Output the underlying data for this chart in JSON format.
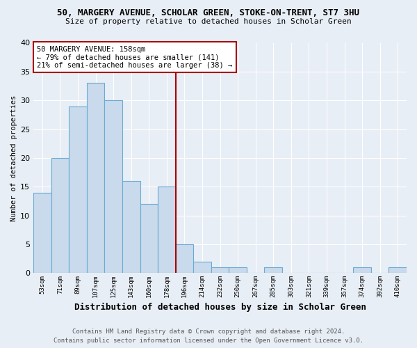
{
  "title": "50, MARGERY AVENUE, SCHOLAR GREEN, STOKE-ON-TRENT, ST7 3HU",
  "subtitle": "Size of property relative to detached houses in Scholar Green",
  "xlabel": "Distribution of detached houses by size in Scholar Green",
  "ylabel": "Number of detached properties",
  "footer_line1": "Contains HM Land Registry data © Crown copyright and database right 2024.",
  "footer_line2": "Contains public sector information licensed under the Open Government Licence v3.0.",
  "annotation_line1": "50 MARGERY AVENUE: 158sqm",
  "annotation_line2": "← 79% of detached houses are smaller (141)",
  "annotation_line3": "21% of semi-detached houses are larger (38) →",
  "bar_labels": [
    "53sqm",
    "71sqm",
    "89sqm",
    "107sqm",
    "125sqm",
    "143sqm",
    "160sqm",
    "178sqm",
    "196sqm",
    "214sqm",
    "232sqm",
    "250sqm",
    "267sqm",
    "285sqm",
    "303sqm",
    "321sqm",
    "339sqm",
    "357sqm",
    "374sqm",
    "392sqm",
    "410sqm"
  ],
  "bar_values": [
    14,
    20,
    29,
    33,
    30,
    16,
    12,
    15,
    5,
    2,
    1,
    1,
    0,
    1,
    0,
    0,
    0,
    0,
    1,
    0,
    1
  ],
  "bar_color": "#c8daec",
  "bar_edge_color": "#6aaad4",
  "marker_color": "#aa0000",
  "marker_after_index": 7,
  "ylim": [
    0,
    40
  ],
  "yticks": [
    0,
    5,
    10,
    15,
    20,
    25,
    30,
    35,
    40
  ],
  "background_color": "#e8eef5",
  "grid_color": "#ffffff",
  "title_fontsize": 9,
  "subtitle_fontsize": 8,
  "ylabel_fontsize": 7.5,
  "xlabel_fontsize": 9,
  "tick_fontsize": 6.5,
  "annotation_fontsize": 7.5,
  "footer_fontsize": 6.5
}
